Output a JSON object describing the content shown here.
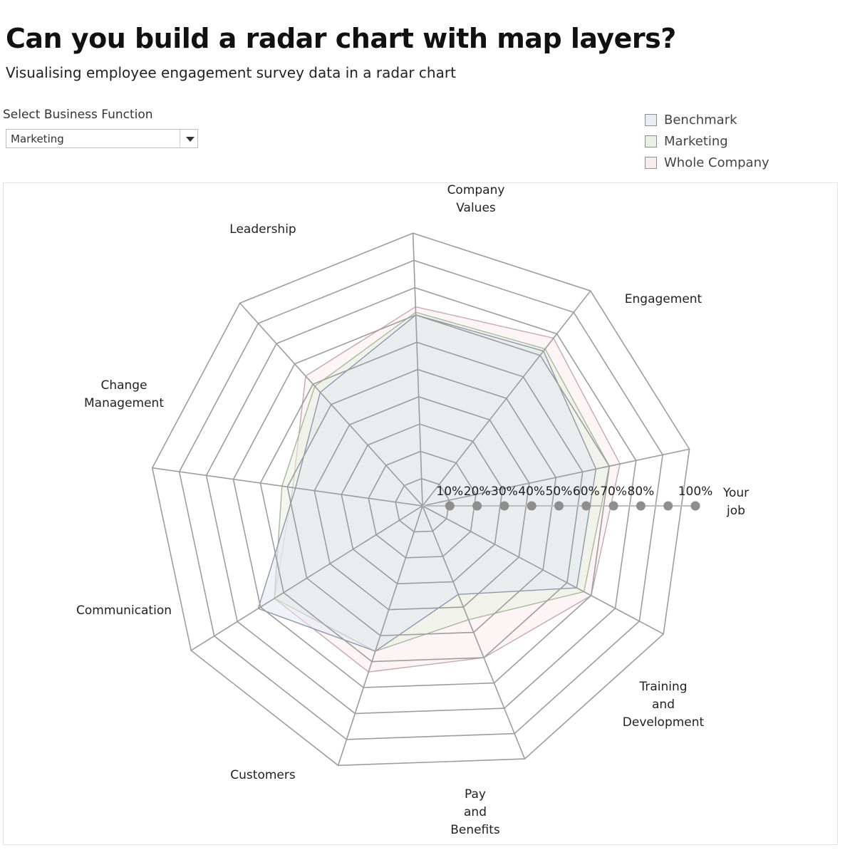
{
  "header": {
    "title": "Can you build a radar chart with map layers?",
    "subtitle": "Visualising employee engagement survey data in a radar chart"
  },
  "filter": {
    "label": "Select Business Function",
    "selected": "Marketing"
  },
  "legend": {
    "items": [
      {
        "label": "Benchmark",
        "fill": "#e8ecf3"
      },
      {
        "label": "Marketing",
        "fill": "#e9f1e4"
      },
      {
        "label": "Whole Company",
        "fill": "#fbecec"
      }
    ]
  },
  "chart_data": {
    "type": "radar",
    "title": "",
    "categories": [
      "Your job",
      "Engagement",
      "Company Values",
      "Leadership",
      "Change Management",
      "Communication",
      "Customers",
      "Pay and Benefits",
      "Training and Development"
    ],
    "category_labels": [
      [
        "Your",
        "job"
      ],
      [
        "Engagement"
      ],
      [
        "Company",
        "Values"
      ],
      [
        "Leadership"
      ],
      [
        "Change",
        "Management"
      ],
      [
        "Communication"
      ],
      [
        "Customers"
      ],
      [
        "Pay",
        "and",
        "Benefits"
      ],
      [
        "Training",
        "and",
        "Development"
      ]
    ],
    "rmax": 100,
    "rings": [
      10,
      20,
      30,
      40,
      50,
      60,
      70,
      80,
      90,
      100
    ],
    "tick_labels": [
      "10%",
      "20%",
      "30%",
      "40%",
      "50%",
      "60%",
      "70%",
      "80%",
      "100%"
    ],
    "tick_values": [
      10,
      20,
      30,
      40,
      50,
      60,
      70,
      80,
      100
    ],
    "marker_values": [
      10,
      20,
      30,
      40,
      50,
      60,
      70,
      80,
      90,
      100
    ],
    "series": [
      {
        "name": "Whole Company",
        "values": [
          74,
          78,
          73,
          64,
          48,
          64,
          64,
          60,
          70
        ],
        "fill": "#fbeded",
        "stroke": "#c9a7ad"
      },
      {
        "name": "Marketing",
        "values": [
          70,
          73,
          71,
          59,
          52,
          64,
          56,
          45,
          67
        ],
        "fill": "#e7f0e1",
        "stroke": "#a7b89c"
      },
      {
        "name": "Benchmark",
        "values": [
          65,
          72,
          70,
          56,
          47,
          71,
          56,
          35,
          64
        ],
        "fill": "#e2e7f1",
        "stroke": "#8d98ad"
      }
    ],
    "grid": true
  }
}
